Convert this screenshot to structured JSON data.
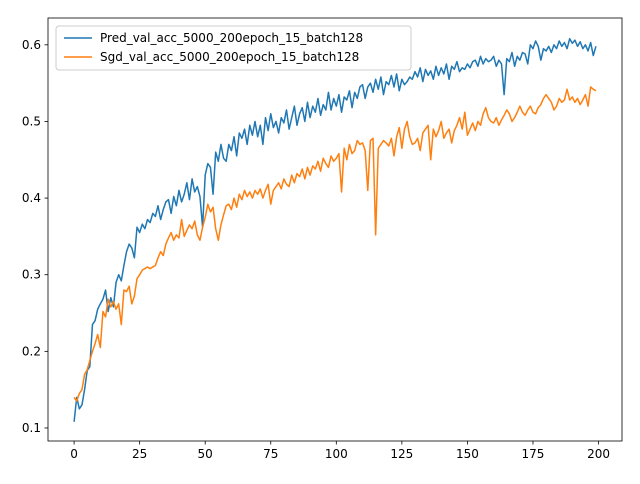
{
  "chart_data": {
    "type": "line",
    "x": [
      0,
      1,
      2,
      3,
      4,
      5,
      6,
      7,
      8,
      9,
      10,
      11,
      12,
      13,
      14,
      15,
      16,
      17,
      18,
      19,
      20,
      21,
      22,
      23,
      24,
      25,
      26,
      27,
      28,
      29,
      30,
      31,
      32,
      33,
      34,
      35,
      36,
      37,
      38,
      39,
      40,
      41,
      42,
      43,
      44,
      45,
      46,
      47,
      48,
      49,
      50,
      51,
      52,
      53,
      54,
      55,
      56,
      57,
      58,
      59,
      60,
      61,
      62,
      63,
      64,
      65,
      66,
      67,
      68,
      69,
      70,
      71,
      72,
      73,
      74,
      75,
      76,
      77,
      78,
      79,
      80,
      81,
      82,
      83,
      84,
      85,
      86,
      87,
      88,
      89,
      90,
      91,
      92,
      93,
      94,
      95,
      96,
      97,
      98,
      99,
      100,
      101,
      102,
      103,
      104,
      105,
      106,
      107,
      108,
      109,
      110,
      111,
      112,
      113,
      114,
      115,
      116,
      117,
      118,
      119,
      120,
      121,
      122,
      123,
      124,
      125,
      126,
      127,
      128,
      129,
      130,
      131,
      132,
      133,
      134,
      135,
      136,
      137,
      138,
      139,
      140,
      141,
      142,
      143,
      144,
      145,
      146,
      147,
      148,
      149,
      150,
      151,
      152,
      153,
      154,
      155,
      156,
      157,
      158,
      159,
      160,
      161,
      162,
      163,
      164,
      165,
      166,
      167,
      168,
      169,
      170,
      171,
      172,
      173,
      174,
      175,
      176,
      177,
      178,
      179,
      180,
      181,
      182,
      183,
      184,
      185,
      186,
      187,
      188,
      189,
      190,
      191,
      192,
      193,
      194,
      195,
      196,
      197,
      198,
      199
    ],
    "series": [
      {
        "name": "Pred_val_acc_5000_200epoch_15_batch128",
        "color": "#1f77b4",
        "values": [
          0.108,
          0.14,
          0.125,
          0.13,
          0.15,
          0.175,
          0.18,
          0.235,
          0.24,
          0.255,
          0.262,
          0.268,
          0.28,
          0.252,
          0.27,
          0.258,
          0.29,
          0.3,
          0.292,
          0.312,
          0.33,
          0.34,
          0.335,
          0.322,
          0.362,
          0.355,
          0.366,
          0.36,
          0.372,
          0.368,
          0.38,
          0.376,
          0.39,
          0.372,
          0.385,
          0.395,
          0.398,
          0.38,
          0.402,
          0.39,
          0.41,
          0.395,
          0.405,
          0.42,
          0.398,
          0.425,
          0.408,
          0.415,
          0.402,
          0.362,
          0.43,
          0.445,
          0.44,
          0.405,
          0.46,
          0.448,
          0.47,
          0.452,
          0.448,
          0.47,
          0.462,
          0.48,
          0.455,
          0.485,
          0.478,
          0.49,
          0.47,
          0.495,
          0.482,
          0.5,
          0.48,
          0.495,
          0.47,
          0.505,
          0.488,
          0.51,
          0.492,
          0.5,
          0.485,
          0.505,
          0.498,
          0.515,
          0.49,
          0.505,
          0.52,
          0.495,
          0.51,
          0.518,
          0.5,
          0.525,
          0.505,
          0.52,
          0.512,
          0.53,
          0.508,
          0.522,
          0.515,
          0.538,
          0.515,
          0.53,
          0.52,
          0.535,
          0.512,
          0.532,
          0.528,
          0.54,
          0.518,
          0.538,
          0.53,
          0.545,
          0.548,
          0.53,
          0.545,
          0.55,
          0.538,
          0.555,
          0.542,
          0.558,
          0.535,
          0.552,
          0.548,
          0.56,
          0.545,
          0.562,
          0.54,
          0.555,
          0.548,
          0.552,
          0.558,
          0.555,
          0.565,
          0.558,
          0.57,
          0.552,
          0.568,
          0.56,
          0.566,
          0.555,
          0.572,
          0.56,
          0.57,
          0.562,
          0.575,
          0.555,
          0.572,
          0.568,
          0.578,
          0.565,
          0.57,
          0.568,
          0.575,
          0.57,
          0.578,
          0.58,
          0.572,
          0.585,
          0.575,
          0.582,
          0.578,
          0.58,
          0.585,
          0.572,
          0.58,
          0.575,
          0.535,
          0.582,
          0.578,
          0.59,
          0.572,
          0.585,
          0.58,
          0.59,
          0.588,
          0.575,
          0.6,
          0.595,
          0.605,
          0.598,
          0.58,
          0.595,
          0.592,
          0.598,
          0.59,
          0.6,
          0.595,
          0.605,
          0.598,
          0.603,
          0.595,
          0.608,
          0.602,
          0.606,
          0.598,
          0.604,
          0.595,
          0.6,
          0.592,
          0.603,
          0.586,
          0.598
        ]
      },
      {
        "name": "Sgd_val_acc_5000_200epoch_15_batch128",
        "color": "#ff7f0e",
        "values": [
          0.14,
          0.135,
          0.145,
          0.15,
          0.17,
          0.176,
          0.188,
          0.2,
          0.21,
          0.222,
          0.205,
          0.252,
          0.245,
          0.268,
          0.258,
          0.265,
          0.255,
          0.262,
          0.235,
          0.28,
          0.278,
          0.285,
          0.262,
          0.272,
          0.295,
          0.3,
          0.306,
          0.308,
          0.31,
          0.308,
          0.31,
          0.312,
          0.322,
          0.33,
          0.325,
          0.34,
          0.348,
          0.355,
          0.345,
          0.352,
          0.348,
          0.372,
          0.35,
          0.358,
          0.365,
          0.36,
          0.37,
          0.352,
          0.345,
          0.362,
          0.375,
          0.392,
          0.382,
          0.388,
          0.36,
          0.345,
          0.365,
          0.378,
          0.39,
          0.392,
          0.385,
          0.4,
          0.388,
          0.405,
          0.398,
          0.41,
          0.402,
          0.408,
          0.4,
          0.41,
          0.405,
          0.412,
          0.4,
          0.41,
          0.418,
          0.392,
          0.41,
          0.415,
          0.42,
          0.412,
          0.425,
          0.418,
          0.415,
          0.43,
          0.42,
          0.432,
          0.428,
          0.438,
          0.425,
          0.44,
          0.43,
          0.442,
          0.438,
          0.448,
          0.435,
          0.452,
          0.445,
          0.44,
          0.455,
          0.448,
          0.452,
          0.458,
          0.408,
          0.465,
          0.45,
          0.47,
          0.458,
          0.462,
          0.475,
          0.47,
          0.472,
          0.462,
          0.41,
          0.475,
          0.478,
          0.352,
          0.465,
          0.47,
          0.475,
          0.472,
          0.468,
          0.478,
          0.455,
          0.48,
          0.492,
          0.465,
          0.49,
          0.5,
          0.48,
          0.47,
          0.472,
          0.478,
          0.462,
          0.485,
          0.49,
          0.495,
          0.45,
          0.49,
          0.48,
          0.488,
          0.5,
          0.478,
          0.485,
          0.49,
          0.472,
          0.488,
          0.495,
          0.505,
          0.49,
          0.512,
          0.482,
          0.49,
          0.498,
          0.488,
          0.5,
          0.495,
          0.51,
          0.518,
          0.505,
          0.5,
          0.498,
          0.505,
          0.495,
          0.502,
          0.508,
          0.515,
          0.51,
          0.5,
          0.505,
          0.512,
          0.52,
          0.512,
          0.508,
          0.515,
          0.52,
          0.512,
          0.51,
          0.518,
          0.522,
          0.53,
          0.535,
          0.53,
          0.525,
          0.515,
          0.52,
          0.53,
          0.525,
          0.528,
          0.542,
          0.528,
          0.532,
          0.525,
          0.53,
          0.522,
          0.528,
          0.535,
          0.52,
          0.545,
          0.542,
          0.54
        ]
      }
    ],
    "xlim": [
      -9.95,
      208.95
    ],
    "xticks": [
      0,
      25,
      50,
      75,
      100,
      125,
      150,
      175,
      200
    ],
    "ylim": [
      0.083,
      0.635
    ],
    "yticks": [
      0.1,
      0.2,
      0.3,
      0.4,
      0.5,
      0.6
    ],
    "legend": "upper left"
  }
}
